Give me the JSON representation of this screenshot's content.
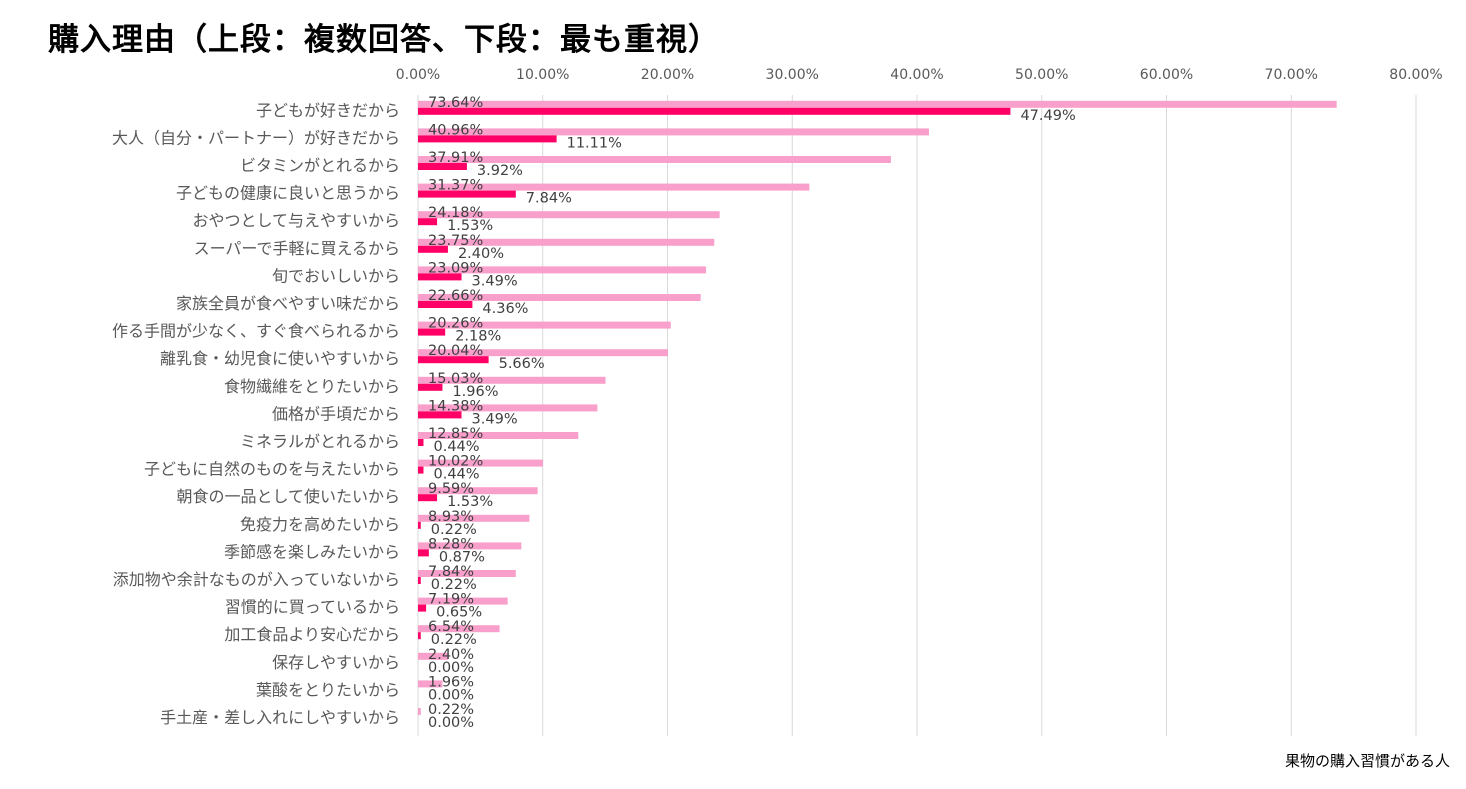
{
  "title": "購入理由（上段：複数回答、下段：最も重視）",
  "footnote": "果物の購入習慣がある人",
  "colors": {
    "multiple": "#F99FCB",
    "most_important": "#FF0066",
    "grid": "#D9D9D9"
  },
  "chart_data": {
    "type": "bar",
    "orientation": "horizontal",
    "xlim": [
      0,
      80
    ],
    "x_ticks": [
      "0.00%",
      "10.00%",
      "20.00%",
      "30.00%",
      "40.00%",
      "50.00%",
      "60.00%",
      "70.00%",
      "80.00%"
    ],
    "grid": true,
    "categories": [
      "子どもが好きだから",
      "大人（自分・パートナー）が好きだから",
      "ビタミンがとれるから",
      "子どもの健康に良いと思うから",
      "おやつとして与えやすいから",
      "スーパーで手軽に買えるから",
      "旬でおいしいから",
      "家族全員が食べやすい味だから",
      "作る手間が少なく、すぐ食べられるから",
      "離乳食・幼児食に使いやすいから",
      "食物繊維をとりたいから",
      "価格が手頃だから",
      "ミネラルがとれるから",
      "子どもに自然のものを与えたいから",
      "朝食の一品として使いたいから",
      "免疫力を高めたいから",
      "季節感を楽しみたいから",
      "添加物や余計なものが入っていないから",
      "習慣的に買っているから",
      "加工食品より安心だから",
      "保存しやすいから",
      "葉酸をとりたいから",
      "手土産・差し入れにしやすいから"
    ],
    "series": [
      {
        "values": [
          73.64,
          40.96,
          37.91,
          31.37,
          24.18,
          23.75,
          23.09,
          22.66,
          20.26,
          20.04,
          15.03,
          14.38,
          12.85,
          10.02,
          9.59,
          8.93,
          8.28,
          7.84,
          7.19,
          6.54,
          2.4,
          1.96,
          0.22
        ],
        "labels": [
          "73.64%",
          "40.96%",
          "37.91%",
          "31.37%",
          "24.18%",
          "23.75%",
          "23.09%",
          "22.66%",
          "20.26%",
          "20.04%",
          "15.03%",
          "14.38%",
          "12.85%",
          "10.02%",
          "9.59%",
          "8.93%",
          "8.28%",
          "7.84%",
          "7.19%",
          "6.54%",
          "2.40%",
          "1.96%",
          "0.22%"
        ]
      },
      {
        "values": [
          47.49,
          11.11,
          3.92,
          7.84,
          1.53,
          2.4,
          3.49,
          4.36,
          2.18,
          5.66,
          1.96,
          3.49,
          0.44,
          0.44,
          1.53,
          0.22,
          0.87,
          0.22,
          0.65,
          0.22,
          0.0,
          0.0,
          0.0
        ],
        "labels": [
          "47.49%",
          "11.11%",
          "3.92%",
          "7.84%",
          "1.53%",
          "2.40%",
          "3.49%",
          "4.36%",
          "2.18%",
          "5.66%",
          "1.96%",
          "3.49%",
          "0.44%",
          "0.44%",
          "1.53%",
          "0.22%",
          "0.87%",
          "0.22%",
          "0.65%",
          "0.22%",
          "0.00%",
          "0.00%",
          "0.00%"
        ]
      }
    ]
  }
}
